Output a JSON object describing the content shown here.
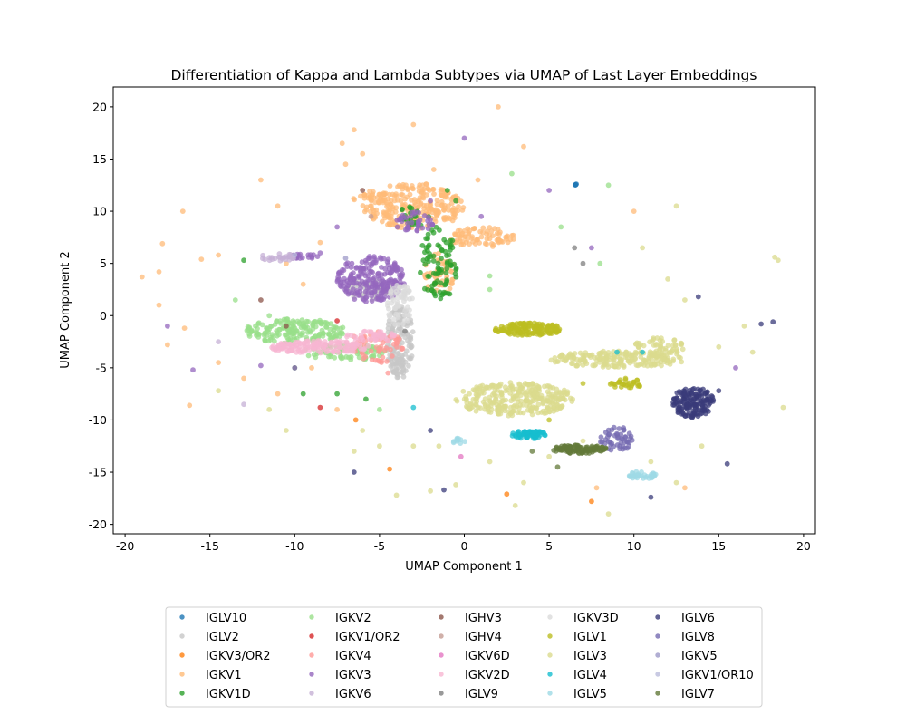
{
  "chart_data": {
    "type": "scatter",
    "title": "Differentiation of Kappa and Lambda Subtypes via UMAP of Last Layer Embeddings",
    "xlabel": "UMAP Component 1",
    "ylabel": "UMAP Component 2",
    "xlim": [
      -20.7,
      20.7
    ],
    "ylim": [
      -20.9,
      21.9
    ],
    "xticks": [
      -20,
      -15,
      -10,
      -5,
      0,
      5,
      10,
      15,
      20
    ],
    "yticks": [
      -20,
      -15,
      -10,
      -5,
      0,
      5,
      10,
      15,
      20
    ],
    "grid": false,
    "legend_placement": "below plot, 5 columns",
    "series": [
      {
        "name": "IGLV10",
        "color": "#1f77b4",
        "clusters": [
          {
            "cx": 6.6,
            "cy": 12.6,
            "rx": 0.1,
            "ry": 0.1,
            "n": 3
          }
        ],
        "points": [
          [
            6.6,
            12.6
          ]
        ]
      },
      {
        "name": "IGLV2",
        "color": "#c7c7c7",
        "clusters": [
          {
            "cx": -3.8,
            "cy": -2.5,
            "rx": 0.8,
            "ry": 3.5,
            "n": 160
          },
          {
            "cx": -5.5,
            "cy": 2.5,
            "rx": 1.5,
            "ry": 1.0,
            "n": 60
          }
        ],
        "points": []
      },
      {
        "name": "IGKV3/OR2",
        "color": "#ff7f0e",
        "clusters": [],
        "points": [
          [
            -4.4,
            -14.7
          ],
          [
            -6.4,
            -10.0
          ],
          [
            2.5,
            -17.1
          ],
          [
            7.5,
            -17.8
          ]
        ]
      },
      {
        "name": "IGKV1",
        "color": "#ffbb78",
        "clusters": [
          {
            "cx": -3.0,
            "cy": 10.5,
            "rx": 3.0,
            "ry": 2.2,
            "n": 260
          },
          {
            "cx": 1.0,
            "cy": 7.5,
            "rx": 2.0,
            "ry": 1.0,
            "n": 80
          },
          {
            "cx": -1.5,
            "cy": 4.0,
            "rx": 1.0,
            "ry": 2.0,
            "n": 50
          },
          {
            "cx": -6.0,
            "cy": 11.5,
            "rx": 1.5,
            "ry": 0.6,
            "n": 20
          }
        ],
        "points": [
          [
            -16.6,
            10.0
          ],
          [
            -17.8,
            6.9
          ],
          [
            -14.5,
            5.8
          ],
          [
            -15.5,
            5.4
          ],
          [
            -19.0,
            3.7
          ],
          [
            -18.0,
            4.2
          ],
          [
            -18.0,
            1.0
          ],
          [
            -16.5,
            -1.2
          ],
          [
            -17.5,
            -2.8
          ],
          [
            -16.2,
            -8.6
          ],
          [
            -12.0,
            13.0
          ],
          [
            -11.0,
            10.5
          ],
          [
            -6.5,
            17.8
          ],
          [
            -6.0,
            15.5
          ],
          [
            -7.0,
            14.5
          ],
          [
            -3.0,
            18.3
          ],
          [
            2.0,
            20.0
          ],
          [
            3.5,
            16.2
          ],
          [
            -1.8,
            14.0
          ],
          [
            0.8,
            13.0
          ],
          [
            -8.5,
            7.0
          ],
          [
            -10.5,
            5.0
          ],
          [
            -9.5,
            3.0
          ],
          [
            -13.0,
            -6.0
          ],
          [
            -11.0,
            -7.5
          ],
          [
            -7.5,
            -9.0
          ],
          [
            -9.0,
            -5.0
          ],
          [
            -14.5,
            -4.5
          ],
          [
            7.8,
            -16.5
          ],
          [
            13.0,
            -16.5
          ],
          [
            10.0,
            10.0
          ],
          [
            -7.2,
            16.5
          ]
        ]
      },
      {
        "name": "IGKV1D",
        "color": "#2ca02c",
        "clusters": [
          {
            "cx": -1.5,
            "cy": 5.0,
            "rx": 1.2,
            "ry": 3.5,
            "n": 90
          },
          {
            "cx": -3.0,
            "cy": 9.5,
            "rx": 1.0,
            "ry": 1.0,
            "n": 25
          }
        ],
        "points": [
          [
            -13.0,
            5.3
          ],
          [
            -7.5,
            -7.5
          ],
          [
            -10.0,
            -5.0
          ],
          [
            -5.8,
            -8.0
          ],
          [
            -1.0,
            12.0
          ],
          [
            -0.5,
            11.0
          ],
          [
            -9.5,
            -7.5
          ]
        ]
      },
      {
        "name": "IGKV2",
        "color": "#98df8a",
        "clusters": [
          {
            "cx": -10.0,
            "cy": -1.5,
            "rx": 3.0,
            "ry": 1.2,
            "n": 180
          },
          {
            "cx": -7.0,
            "cy": -3.5,
            "rx": 2.5,
            "ry": 0.8,
            "n": 80
          }
        ],
        "points": [
          [
            2.8,
            13.6
          ],
          [
            5.7,
            8.5
          ],
          [
            1.5,
            2.5
          ],
          [
            8.0,
            5.0
          ],
          [
            -11.5,
            0.0
          ],
          [
            -13.5,
            1.5
          ],
          [
            1.5,
            3.8
          ],
          [
            -5.0,
            -9.0
          ],
          [
            8.5,
            12.5
          ]
        ]
      },
      {
        "name": "IGKV1/OR2",
        "color": "#d62728",
        "clusters": [],
        "points": [
          [
            -8.5,
            -8.8
          ],
          [
            -7.5,
            -0.5
          ]
        ]
      },
      {
        "name": "IGKV4",
        "color": "#ff9896",
        "clusters": [
          {
            "cx": -5.0,
            "cy": -3.0,
            "rx": 1.5,
            "ry": 1.5,
            "n": 60
          }
        ],
        "points": [
          [
            -6.5,
            -2.0
          ],
          [
            -4.5,
            -5.5
          ]
        ]
      },
      {
        "name": "IGKV3",
        "color": "#9467bd",
        "clusters": [
          {
            "cx": -5.5,
            "cy": 3.5,
            "rx": 2.0,
            "ry": 2.2,
            "n": 220
          },
          {
            "cx": -3.0,
            "cy": 9.0,
            "rx": 1.2,
            "ry": 1.0,
            "n": 40
          },
          {
            "cx": -9.5,
            "cy": 5.6,
            "rx": 1.0,
            "ry": 0.3,
            "n": 20
          }
        ],
        "points": [
          [
            -17.5,
            -1.0
          ],
          [
            -16.0,
            -5.2
          ],
          [
            -12.0,
            -4.8
          ],
          [
            -7.5,
            8.5
          ],
          [
            -8.5,
            6.0
          ],
          [
            0.0,
            17.0
          ],
          [
            1.0,
            9.5
          ],
          [
            5.0,
            12.0
          ],
          [
            7.5,
            6.5
          ],
          [
            16.0,
            -5.0
          ],
          [
            -10.0,
            -5.0
          ],
          [
            -2.0,
            11.0
          ]
        ]
      },
      {
        "name": "IGKV6",
        "color": "#c5b0d5",
        "clusters": [
          {
            "cx": -11.0,
            "cy": 5.6,
            "rx": 1.0,
            "ry": 0.4,
            "n": 25
          }
        ],
        "points": [
          [
            -13.0,
            -8.5
          ],
          [
            -14.5,
            -2.5
          ]
        ]
      },
      {
        "name": "IGHV3",
        "color": "#8c564b",
        "clusters": [],
        "points": [
          [
            -6.0,
            12.0
          ],
          [
            -12.0,
            1.5
          ],
          [
            -10.5,
            -1.0
          ]
        ]
      },
      {
        "name": "IGHV4",
        "color": "#c49c94",
        "clusters": [],
        "points": [
          [
            -5.5,
            9.5
          ]
        ]
      },
      {
        "name": "IGKV6D",
        "color": "#e377c2",
        "clusters": [],
        "points": [
          [
            -0.2,
            -13.5
          ]
        ]
      },
      {
        "name": "IGKV2D",
        "color": "#f7b6d2",
        "clusters": [
          {
            "cx": -8.5,
            "cy": -3.0,
            "rx": 3.0,
            "ry": 0.6,
            "n": 140
          },
          {
            "cx": -5.5,
            "cy": -2.0,
            "rx": 1.5,
            "ry": 0.5,
            "n": 40
          }
        ],
        "points": []
      },
      {
        "name": "IGLV9",
        "color": "#7f7f7f",
        "clusters": [],
        "points": [
          [
            -3.5,
            -1.5
          ],
          [
            6.5,
            6.5
          ],
          [
            7.0,
            5.0
          ]
        ]
      },
      {
        "name": "IGKV3D",
        "color": "#dbdbdb",
        "clusters": [
          {
            "cx": -3.8,
            "cy": 1.0,
            "rx": 0.8,
            "ry": 2.0,
            "n": 60
          }
        ],
        "points": []
      },
      {
        "name": "IGLV1",
        "color": "#bcbd22",
        "clusters": [
          {
            "cx": 3.8,
            "cy": -1.3,
            "rx": 2.0,
            "ry": 0.6,
            "n": 160
          },
          {
            "cx": 9.5,
            "cy": -6.5,
            "rx": 1.0,
            "ry": 0.5,
            "n": 30
          }
        ],
        "points": [
          [
            7.0,
            -6.5
          ],
          [
            5.0,
            -10.0
          ]
        ]
      },
      {
        "name": "IGLV3",
        "color": "#dbdb8d",
        "clusters": [
          {
            "cx": 3.0,
            "cy": -8.0,
            "rx": 3.5,
            "ry": 1.6,
            "n": 300
          },
          {
            "cx": 9.0,
            "cy": -4.2,
            "rx": 4.0,
            "ry": 0.8,
            "n": 200
          },
          {
            "cx": 11.5,
            "cy": -3.0,
            "rx": 1.5,
            "ry": 1.0,
            "n": 60
          }
        ],
        "points": [
          [
            12.5,
            10.5
          ],
          [
            10.5,
            6.5
          ],
          [
            12.0,
            3.5
          ],
          [
            13.0,
            1.5
          ],
          [
            15.0,
            -3.0
          ],
          [
            16.5,
            -1.0
          ],
          [
            17.0,
            -3.5
          ],
          [
            18.5,
            5.3
          ],
          [
            18.3,
            5.6
          ],
          [
            18.8,
            -8.8
          ],
          [
            14.0,
            -12.5
          ],
          [
            12.5,
            -16.0
          ],
          [
            7.0,
            -12.0
          ],
          [
            5.0,
            -13.5
          ],
          [
            3.5,
            -16.0
          ],
          [
            -0.5,
            -16.2
          ],
          [
            -2.0,
            -16.8
          ],
          [
            -4.0,
            -17.2
          ],
          [
            -1.5,
            -12.5
          ],
          [
            1.5,
            -14.0
          ],
          [
            -3.0,
            -12.5
          ],
          [
            -6.5,
            -13.0
          ],
          [
            -5.0,
            -12.5
          ],
          [
            -14.5,
            -7.2
          ],
          [
            -11.5,
            -9.0
          ],
          [
            -10.5,
            -11.0
          ],
          [
            -6.0,
            -11.0
          ],
          [
            8.5,
            -19.0
          ],
          [
            3.0,
            -18.2
          ],
          [
            11.0,
            -14.0
          ]
        ]
      },
      {
        "name": "IGLV4",
        "color": "#17becf",
        "clusters": [
          {
            "cx": 3.8,
            "cy": -11.4,
            "rx": 1.0,
            "ry": 0.4,
            "n": 60
          }
        ],
        "points": [
          [
            -3.0,
            -8.8
          ],
          [
            9.0,
            -3.5
          ],
          [
            10.5,
            -3.5
          ]
        ]
      },
      {
        "name": "IGLV5",
        "color": "#9edae5",
        "clusters": [
          {
            "cx": 10.5,
            "cy": -15.3,
            "rx": 0.8,
            "ry": 0.4,
            "n": 35
          },
          {
            "cx": -0.3,
            "cy": -12.0,
            "rx": 0.4,
            "ry": 0.3,
            "n": 10
          }
        ],
        "points": []
      },
      {
        "name": "IGLV6",
        "color": "#393b79",
        "clusters": [
          {
            "cx": 13.5,
            "cy": -8.3,
            "rx": 1.2,
            "ry": 1.5,
            "n": 150
          }
        ],
        "points": [
          [
            13.8,
            1.8
          ],
          [
            17.5,
            -0.8
          ],
          [
            18.2,
            -0.6
          ],
          [
            15.5,
            -14.2
          ],
          [
            11.0,
            -17.4
          ],
          [
            -1.2,
            -16.7
          ],
          [
            -6.5,
            -15.0
          ],
          [
            -2.0,
            -11.0
          ],
          [
            15.0,
            -7.2
          ]
        ]
      },
      {
        "name": "IGLV8",
        "color": "#756bb1",
        "clusters": [
          {
            "cx": 9.0,
            "cy": -11.8,
            "rx": 1.0,
            "ry": 1.2,
            "n": 50
          }
        ],
        "points": []
      },
      {
        "name": "IGKV5",
        "color": "#9e9ac8",
        "clusters": [],
        "points": [
          [
            -7.0,
            5.5
          ]
        ]
      },
      {
        "name": "IGKV1/OR10",
        "color": "#bcbddc",
        "clusters": [],
        "points": [
          [
            -10.0,
            5.8
          ]
        ]
      },
      {
        "name": "IGLV7",
        "color": "#637939",
        "clusters": [
          {
            "cx": 6.8,
            "cy": -12.8,
            "rx": 1.6,
            "ry": 0.4,
            "n": 110
          }
        ],
        "points": [
          [
            4.0,
            -13.0
          ],
          [
            5.5,
            -14.5
          ]
        ]
      }
    ]
  }
}
